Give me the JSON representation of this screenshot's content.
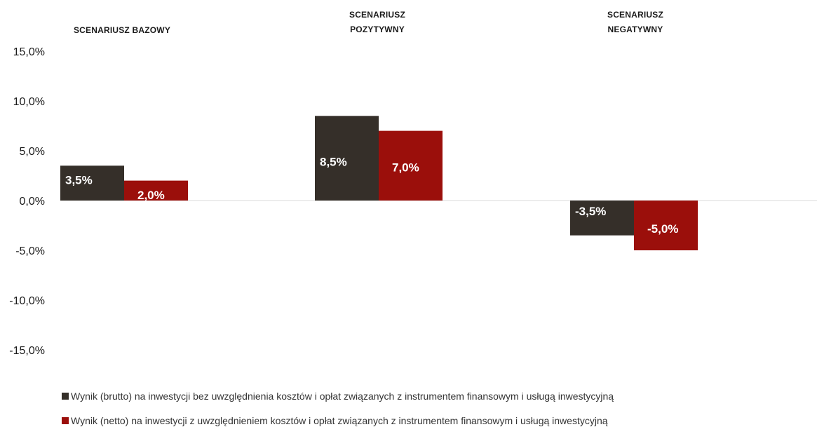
{
  "chart_data": {
    "type": "bar",
    "categories": [
      [
        "SCENARIUSZ BAZOWY"
      ],
      [
        "SCENARIUSZ",
        "POZYTYWNY"
      ],
      [
        "SCENARIUSZ",
        "NEGATYWNY"
      ]
    ],
    "series": [
      {
        "name": "Wynik (brutto) na inwestycji bez uwzględnienia kosztów i opłat związanych z instrumentem finansowym i usługą inwestycyjną",
        "values": [
          3.5,
          8.5,
          -3.5
        ],
        "labels": [
          "3,5%",
          "8,5%",
          "-3,5%"
        ],
        "color": "#352f29"
      },
      {
        "name": "Wynik (netto) na inwestycji z uwzględnieniem kosztów i opłat związanych z instrumentem finansowym i usługą inwestycyjną",
        "values": [
          2.0,
          7.0,
          -5.0
        ],
        "labels": [
          "2,0%",
          "7,0%",
          "-5,0%"
        ],
        "color": "#9b0f0b"
      }
    ],
    "ylim": [
      -15,
      15
    ],
    "yticks": [
      "15,0%",
      "10,0%",
      "5,0%",
      "0,0%",
      "-5,0%",
      "-10,0%",
      "-15,0%"
    ],
    "ytick_values": [
      15,
      10,
      5,
      0,
      -5,
      -10,
      -15
    ],
    "grid": false,
    "legend_position": "bottom-left",
    "zero_line_color": "#d9d9d9"
  }
}
